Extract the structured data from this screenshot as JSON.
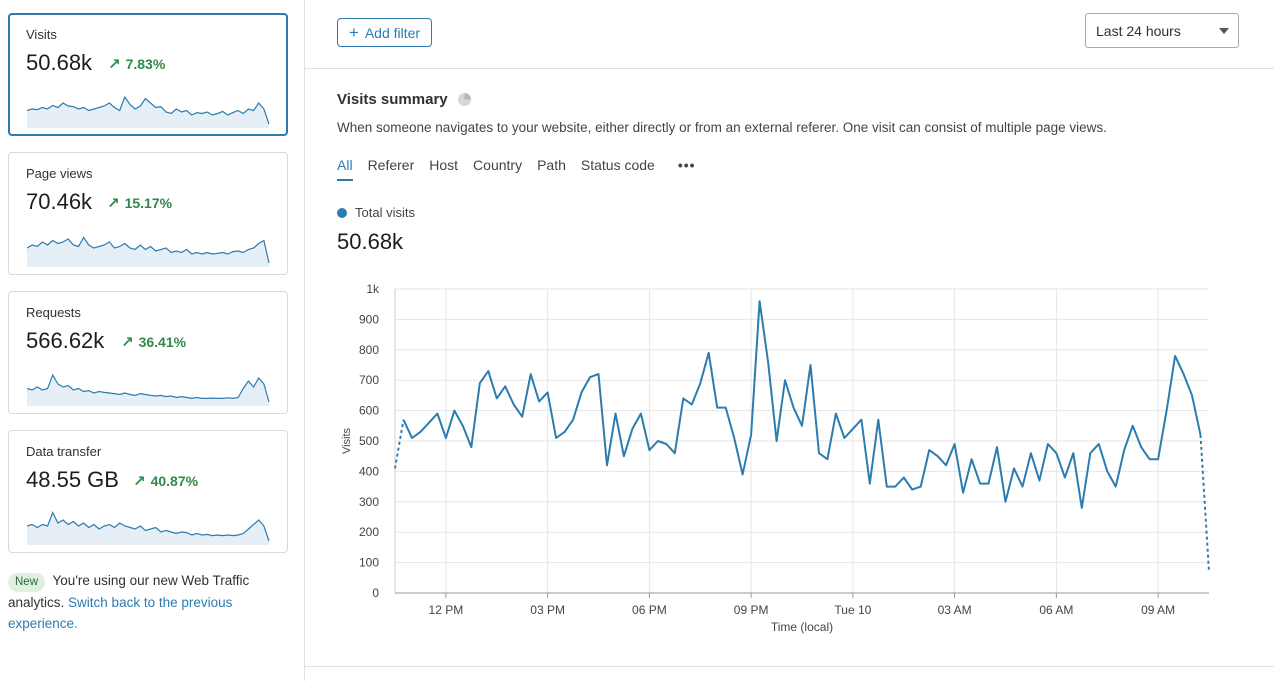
{
  "sidebar": {
    "cards": [
      {
        "label": "Visits",
        "value": "50.68k",
        "delta": "7.83%",
        "spark": [
          0.45,
          0.5,
          0.48,
          0.55,
          0.5,
          0.62,
          0.55,
          0.7,
          0.6,
          0.58,
          0.5,
          0.55,
          0.45,
          0.5,
          0.55,
          0.6,
          0.7,
          0.55,
          0.45,
          0.9,
          0.65,
          0.5,
          0.6,
          0.85,
          0.7,
          0.55,
          0.58,
          0.4,
          0.35,
          0.5,
          0.4,
          0.45,
          0.3,
          0.38,
          0.35,
          0.4,
          0.3,
          0.35,
          0.42,
          0.3,
          0.38,
          0.45,
          0.35,
          0.5,
          0.45,
          0.7,
          0.5,
          0.0
        ]
      },
      {
        "label": "Page views",
        "value": "70.46k",
        "delta": "15.17%",
        "spark": [
          0.5,
          0.6,
          0.55,
          0.7,
          0.6,
          0.75,
          0.65,
          0.7,
          0.8,
          0.6,
          0.55,
          0.85,
          0.6,
          0.5,
          0.55,
          0.6,
          0.7,
          0.5,
          0.55,
          0.65,
          0.5,
          0.45,
          0.6,
          0.45,
          0.55,
          0.4,
          0.45,
          0.5,
          0.35,
          0.4,
          0.35,
          0.45,
          0.3,
          0.35,
          0.3,
          0.35,
          0.3,
          0.32,
          0.35,
          0.3,
          0.38,
          0.4,
          0.35,
          0.45,
          0.5,
          0.65,
          0.75,
          0.0
        ]
      },
      {
        "label": "Requests",
        "value": "566.62k",
        "delta": "36.41%",
        "spark": [
          0.45,
          0.4,
          0.5,
          0.4,
          0.45,
          0.9,
          0.6,
          0.5,
          0.55,
          0.4,
          0.45,
          0.35,
          0.38,
          0.3,
          0.35,
          0.32,
          0.3,
          0.28,
          0.25,
          0.3,
          0.25,
          0.22,
          0.28,
          0.25,
          0.22,
          0.2,
          0.22,
          0.18,
          0.2,
          0.15,
          0.18,
          0.15,
          0.12,
          0.15,
          0.12,
          0.12,
          0.13,
          0.12,
          0.12,
          0.14,
          0.12,
          0.15,
          0.45,
          0.7,
          0.5,
          0.8,
          0.6,
          0.0
        ]
      },
      {
        "label": "Data transfer",
        "value": "48.55 GB",
        "delta": "40.87%",
        "spark": [
          0.5,
          0.55,
          0.45,
          0.55,
          0.5,
          0.95,
          0.6,
          0.7,
          0.55,
          0.65,
          0.5,
          0.6,
          0.45,
          0.55,
          0.4,
          0.5,
          0.55,
          0.45,
          0.6,
          0.5,
          0.45,
          0.4,
          0.5,
          0.35,
          0.4,
          0.45,
          0.3,
          0.35,
          0.3,
          0.25,
          0.3,
          0.28,
          0.2,
          0.25,
          0.2,
          0.22,
          0.18,
          0.2,
          0.18,
          0.2,
          0.18,
          0.2,
          0.25,
          0.4,
          0.55,
          0.7,
          0.5,
          0.0
        ]
      }
    ],
    "notice": {
      "badge": "New",
      "text": "You're using our new Web Traffic analytics.",
      "link": "Switch back to the previous experience."
    }
  },
  "toolbar": {
    "add_filter_label": "Add filter",
    "time_range": "Last 24 hours"
  },
  "summary": {
    "title": "Visits summary",
    "description": "When someone navigates to your website, either directly or from an external referer. One visit can consist of multiple page views.",
    "tabs": [
      "All",
      "Referer",
      "Host",
      "Country",
      "Path",
      "Status code"
    ],
    "active_tab": "All",
    "more_label": "•••",
    "legend_label": "Total visits",
    "total": "50.68k"
  },
  "colors": {
    "accent": "#2c7cb0",
    "positive": "#2f8a47",
    "grid": "#e6e6e6"
  },
  "chart_data": {
    "type": "line",
    "title": "",
    "xlabel": "Time (local)",
    "ylabel": "Visits",
    "ylim": [
      0,
      1000
    ],
    "yticks": [
      0,
      100,
      200,
      300,
      400,
      500,
      600,
      700,
      800,
      900,
      1000
    ],
    "ytick_labels": [
      "0",
      "100",
      "200",
      "300",
      "400",
      "500",
      "600",
      "700",
      "800",
      "900",
      "1k"
    ],
    "x_start_hours": 10.5,
    "x_end_hours": 34.5,
    "xticks": [
      {
        "label": "12 PM",
        "hours": 12
      },
      {
        "label": "03 PM",
        "hours": 15
      },
      {
        "label": "06 PM",
        "hours": 18
      },
      {
        "label": "09 PM",
        "hours": 21
      },
      {
        "label": "Tue 10",
        "hours": 24
      },
      {
        "label": "03 AM",
        "hours": 27
      },
      {
        "label": "06 AM",
        "hours": 30
      },
      {
        "label": "09 AM",
        "hours": 33
      }
    ],
    "grid": true,
    "series": [
      {
        "name": "Total visits",
        "values": [
          410,
          570,
          510,
          530,
          560,
          590,
          510,
          600,
          550,
          480,
          690,
          730,
          640,
          680,
          620,
          580,
          720,
          630,
          660,
          510,
          530,
          570,
          660,
          710,
          720,
          420,
          590,
          450,
          540,
          590,
          470,
          500,
          490,
          460,
          640,
          620,
          690,
          790,
          610,
          610,
          510,
          390,
          520,
          960,
          760,
          500,
          700,
          610,
          550,
          750,
          460,
          440,
          590,
          510,
          540,
          570,
          360,
          570,
          350,
          350,
          380,
          340,
          350,
          470,
          450,
          420,
          490,
          330,
          440,
          360,
          360,
          480,
          300,
          410,
          350,
          460,
          370,
          490,
          460,
          380,
          460,
          280,
          460,
          490,
          400,
          350,
          470,
          550,
          480,
          440,
          440,
          600,
          780,
          720,
          650,
          520,
          70
        ],
        "dashed_head": 1,
        "dashed_tail": 1
      }
    ]
  }
}
